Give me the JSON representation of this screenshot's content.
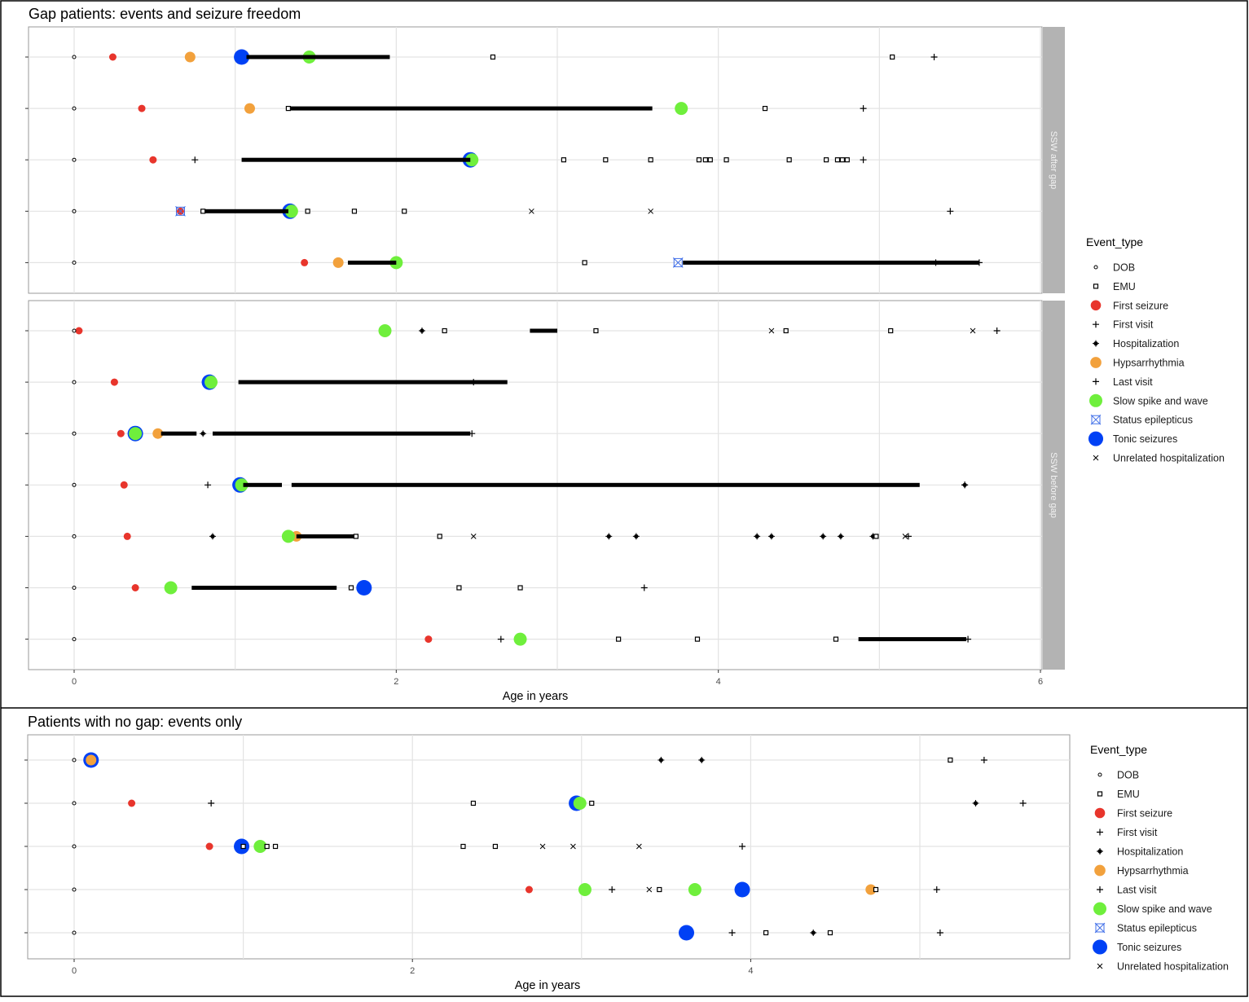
{
  "colors": {
    "first_seizure": "#e8352c",
    "hypsarrhythmia": "#f2a13c",
    "slow_spike_wave": "#6fef3c",
    "tonic": "#0041f5",
    "status": "#3f6ee8",
    "grid": "#e3e3e3",
    "strip": "#b3b3b3"
  },
  "legend": {
    "title": "Event_type",
    "items": [
      {
        "key": "DOB",
        "label": "DOB"
      },
      {
        "key": "EMU",
        "label": "EMU"
      },
      {
        "key": "FS",
        "label": "First seizure"
      },
      {
        "key": "FV",
        "label": "First visit"
      },
      {
        "key": "HOSP",
        "label": "Hospitalization"
      },
      {
        "key": "HYP",
        "label": "Hypsarrhythmia"
      },
      {
        "key": "LV",
        "label": "Last visit"
      },
      {
        "key": "SSW",
        "label": "Slow spike and wave"
      },
      {
        "key": "SE",
        "label": "Status epilepticus"
      },
      {
        "key": "TON",
        "label": "Tonic seizures"
      },
      {
        "key": "UH",
        "label": "Unrelated hospitalization"
      }
    ]
  },
  "chart_data": [
    {
      "type": "scatter",
      "title": "Gap patients: events and seizure freedom",
      "xlabel": "Age in years",
      "xlim": [
        0,
        6
      ],
      "xticks": [
        "0",
        "2",
        "4",
        "6"
      ],
      "grid": true,
      "legend_position": "right",
      "facets": [
        {
          "label": "SSW after gap",
          "patients": [
            {
              "events": [
                [
                  "DOB",
                  0
                ],
                [
                  "FS",
                  0.24
                ],
                [
                  "HYP",
                  0.72
                ],
                [
                  "TON",
                  1.04
                ],
                [
                  "SSW",
                  1.46
                ],
                [
                  "EMU",
                  2.6
                ],
                [
                  "EMU",
                  5.08
                ],
                [
                  "LV",
                  5.34
                ]
              ],
              "gaps": [
                [
                  1.07,
                  1.96
                ]
              ]
            },
            {
              "events": [
                [
                  "DOB",
                  0
                ],
                [
                  "FS",
                  0.42
                ],
                [
                  "HYP",
                  1.09
                ],
                [
                  "EMU",
                  1.33
                ],
                [
                  "SSW",
                  3.77
                ],
                [
                  "EMU",
                  4.29
                ],
                [
                  "LV",
                  4.9
                ]
              ],
              "gaps": [
                [
                  1.33,
                  3.59
                ]
              ]
            },
            {
              "events": [
                [
                  "DOB",
                  0
                ],
                [
                  "FS",
                  0.49
                ],
                [
                  "FV",
                  0.75
                ],
                [
                  "TON",
                  2.46
                ],
                [
                  "SSW",
                  2.47
                ],
                [
                  "EMU",
                  3.04
                ],
                [
                  "EMU",
                  3.3
                ],
                [
                  "EMU",
                  3.58
                ],
                [
                  "EMU",
                  3.88
                ],
                [
                  "EMU",
                  3.92
                ],
                [
                  "EMU",
                  3.95
                ],
                [
                  "EMU",
                  4.05
                ],
                [
                  "EMU",
                  4.44
                ],
                [
                  "EMU",
                  4.67
                ],
                [
                  "EMU",
                  4.74
                ],
                [
                  "EMU",
                  4.77
                ],
                [
                  "EMU",
                  4.8
                ],
                [
                  "LV",
                  4.9
                ]
              ],
              "gaps": [
                [
                  1.04,
                  2.46
                ]
              ]
            },
            {
              "events": [
                [
                  "DOB",
                  0
                ],
                [
                  "FS",
                  0.66
                ],
                [
                  "SE",
                  0.66
                ],
                [
                  "EMU",
                  0.8
                ],
                [
                  "TON",
                  1.34
                ],
                [
                  "SSW",
                  1.35
                ],
                [
                  "EMU",
                  1.45
                ],
                [
                  "EMU",
                  1.74
                ],
                [
                  "EMU",
                  2.05
                ],
                [
                  "UH",
                  2.84
                ],
                [
                  "UH",
                  3.58
                ],
                [
                  "LV",
                  5.44
                ]
              ],
              "gaps": [
                [
                  0.8,
                  1.33
                ]
              ]
            },
            {
              "events": [
                [
                  "DOB",
                  0
                ],
                [
                  "FS",
                  1.43
                ],
                [
                  "HYP",
                  1.64
                ],
                [
                  "SSW",
                  2.0
                ],
                [
                  "EMU",
                  3.17
                ],
                [
                  "SE",
                  3.75
                ],
                [
                  "FV",
                  5.35
                ],
                [
                  "LV",
                  5.62
                ]
              ],
              "gaps": [
                [
                  1.7,
                  2.0
                ],
                [
                  3.78,
                  5.62
                ]
              ]
            }
          ]
        },
        {
          "label": "SSW before gap",
          "patients": [
            {
              "events": [
                [
                  "DOB",
                  0
                ],
                [
                  "FS",
                  0.03
                ],
                [
                  "SSW",
                  1.93
                ],
                [
                  "HOSP",
                  2.16
                ],
                [
                  "EMU",
                  2.3
                ],
                [
                  "EMU",
                  3.24
                ],
                [
                  "UH",
                  4.33
                ],
                [
                  "EMU",
                  4.42
                ],
                [
                  "EMU",
                  5.07
                ],
                [
                  "UH",
                  5.58
                ],
                [
                  "LV",
                  5.73
                ]
              ],
              "gaps": [
                [
                  2.83,
                  3.0
                ]
              ]
            },
            {
              "events": [
                [
                  "DOB",
                  0
                ],
                [
                  "FS",
                  0.25
                ],
                [
                  "TON",
                  0.84
                ],
                [
                  "SSW",
                  0.85
                ],
                [
                  "LV",
                  2.48
                ]
              ],
              "gaps": [
                [
                  1.02,
                  2.69
                ]
              ]
            },
            {
              "events": [
                [
                  "DOB",
                  0
                ],
                [
                  "FS",
                  0.29
                ],
                [
                  "TON",
                  0.38
                ],
                [
                  "SSW",
                  0.38
                ],
                [
                  "HYP",
                  0.52
                ],
                [
                  "HOSP",
                  0.8
                ],
                [
                  "LV",
                  2.47
                ]
              ],
              "gaps": [
                [
                  0.54,
                  0.76
                ],
                [
                  0.86,
                  2.46
                ]
              ]
            },
            {
              "events": [
                [
                  "DOB",
                  0
                ],
                [
                  "FS",
                  0.31
                ],
                [
                  "FV",
                  0.83
                ],
                [
                  "TON",
                  1.03
                ],
                [
                  "SSW",
                  1.04
                ],
                [
                  "HOSP",
                  5.53
                ],
                [
                  "LV",
                  5.53
                ]
              ],
              "gaps": [
                [
                  1.05,
                  1.29
                ],
                [
                  1.35,
                  5.25
                ]
              ]
            },
            {
              "events": [
                [
                  "DOB",
                  0
                ],
                [
                  "FS",
                  0.33
                ],
                [
                  "HOSP",
                  0.86
                ],
                [
                  "SSW",
                  1.33
                ],
                [
                  "HYP",
                  1.38
                ],
                [
                  "EMU",
                  1.75
                ],
                [
                  "EMU",
                  2.27
                ],
                [
                  "UH",
                  2.48
                ],
                [
                  "HOSP",
                  3.32
                ],
                [
                  "HOSP",
                  3.49
                ],
                [
                  "HOSP",
                  4.24
                ],
                [
                  "HOSP",
                  4.33
                ],
                [
                  "HOSP",
                  4.65
                ],
                [
                  "HOSP",
                  4.76
                ],
                [
                  "HOSP",
                  4.96
                ],
                [
                  "EMU",
                  4.98
                ],
                [
                  "UH",
                  5.16
                ],
                [
                  "LV",
                  5.18
                ]
              ],
              "gaps": [
                [
                  1.38,
                  1.75
                ]
              ]
            },
            {
              "events": [
                [
                  "DOB",
                  0
                ],
                [
                  "FS",
                  0.38
                ],
                [
                  "SSW",
                  0.6
                ],
                [
                  "EMU",
                  1.72
                ],
                [
                  "TON",
                  1.8
                ],
                [
                  "EMU",
                  2.39
                ],
                [
                  "EMU",
                  2.77
                ],
                [
                  "LV",
                  3.54
                ]
              ],
              "gaps": [
                [
                  0.73,
                  1.63
                ]
              ]
            },
            {
              "events": [
                [
                  "DOB",
                  0
                ],
                [
                  "FS",
                  2.2
                ],
                [
                  "FV",
                  2.65
                ],
                [
                  "SSW",
                  2.77
                ],
                [
                  "EMU",
                  3.38
                ],
                [
                  "EMU",
                  3.87
                ],
                [
                  "EMU",
                  4.73
                ],
                [
                  "LV",
                  5.55
                ]
              ],
              "gaps": [
                [
                  4.87,
                  5.54
                ]
              ]
            }
          ]
        }
      ]
    },
    {
      "type": "scatter",
      "title": "Patients with no gap: events only",
      "xlabel": "Age in years",
      "xlim": [
        0,
        6
      ],
      "xticks": [
        "0",
        "2",
        "4"
      ],
      "grid": true,
      "legend_position": "right",
      "facets": [
        {
          "label": "",
          "patients": [
            {
              "events": [
                [
                  "DOB",
                  0
                ],
                [
                  "TON",
                  0.1
                ],
                [
                  "HYP",
                  0.1
                ],
                [
                  "HOSP",
                  3.47
                ],
                [
                  "HOSP",
                  3.71
                ],
                [
                  "EMU",
                  5.18
                ],
                [
                  "LV",
                  5.38
                ]
              ],
              "gaps": []
            },
            {
              "events": [
                [
                  "DOB",
                  0
                ],
                [
                  "FS",
                  0.34
                ],
                [
                  "FV",
                  0.81
                ],
                [
                  "EMU",
                  2.36
                ],
                [
                  "TON",
                  2.97
                ],
                [
                  "SSW",
                  2.99
                ],
                [
                  "EMU",
                  3.06
                ],
                [
                  "HOSP",
                  5.33
                ],
                [
                  "LV",
                  5.61
                ]
              ],
              "gaps": []
            },
            {
              "events": [
                [
                  "DOB",
                  0
                ],
                [
                  "FS",
                  0.8
                ],
                [
                  "TON",
                  0.99
                ],
                [
                  "EMU",
                  1.0
                ],
                [
                  "SSW",
                  1.1
                ],
                [
                  "HYP",
                  1.1
                ],
                [
                  "EMU",
                  1.14
                ],
                [
                  "EMU",
                  1.19
                ],
                [
                  "EMU",
                  2.3
                ],
                [
                  "EMU",
                  2.49
                ],
                [
                  "UH",
                  2.77
                ],
                [
                  "UH",
                  2.95
                ],
                [
                  "UH",
                  3.34
                ],
                [
                  "LV",
                  3.95
                ]
              ],
              "gaps": []
            },
            {
              "events": [
                [
                  "DOB",
                  0
                ],
                [
                  "FS",
                  2.69
                ],
                [
                  "SSW",
                  3.02
                ],
                [
                  "FV",
                  3.18
                ],
                [
                  "UH",
                  3.4
                ],
                [
                  "EMU",
                  3.46
                ],
                [
                  "SSW",
                  3.67
                ],
                [
                  "TON",
                  3.95
                ],
                [
                  "HYP",
                  4.71
                ],
                [
                  "EMU",
                  4.74
                ],
                [
                  "LV",
                  5.1
                ]
              ],
              "gaps": []
            },
            {
              "events": [
                [
                  "DOB",
                  0
                ],
                [
                  "TON",
                  3.62
                ],
                [
                  "FV",
                  3.89
                ],
                [
                  "EMU",
                  4.09
                ],
                [
                  "HOSP",
                  4.37
                ],
                [
                  "EMU",
                  4.47
                ],
                [
                  "LV",
                  5.12
                ]
              ],
              "gaps": []
            }
          ]
        }
      ]
    }
  ]
}
